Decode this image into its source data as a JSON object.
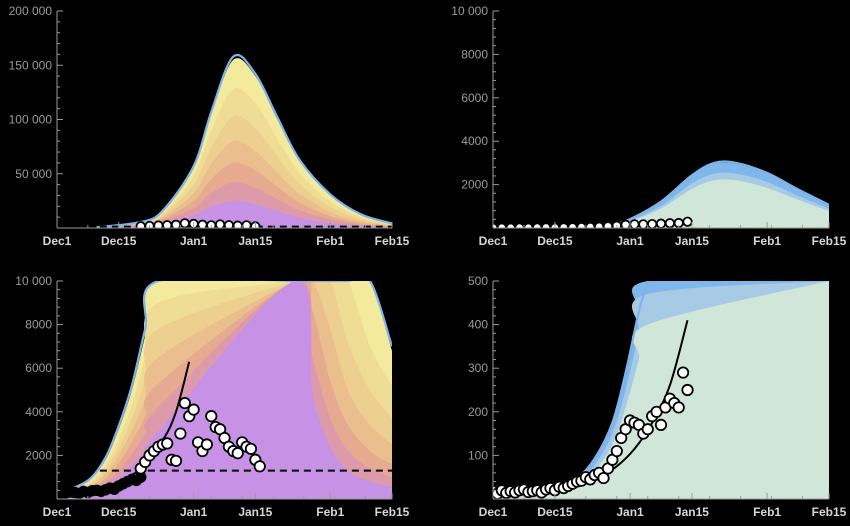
{
  "chart_data": [
    {
      "type": "area",
      "panel": "top-left",
      "palette": "warm",
      "x_dates": [
        "2020-12-01",
        "2020-12-15",
        "2021-01-01",
        "2021-01-15",
        "2021-02-01",
        "2021-02-15"
      ],
      "x_labels": [
        "Dec1",
        "Dec15",
        "Jan1",
        "Jan15",
        "Feb1",
        "Feb15"
      ],
      "y_ticks": [
        50000,
        100000,
        150000,
        200000
      ],
      "y_tick_labels": [
        "50 000",
        "100 000",
        "150 000",
        "200 000"
      ],
      "ylim": [
        0,
        200000
      ],
      "band_curves": {
        "date": [
          "2020-12-10",
          "2020-12-20",
          "2020-12-25",
          "2021-01-01",
          "2021-01-05",
          "2021-01-10",
          "2021-01-15",
          "2021-01-20",
          "2021-01-25",
          "2021-02-01",
          "2021-02-08",
          "2021-02-15"
        ],
        "band_1": [
          600,
          5000,
          15000,
          55000,
          105000,
          155000,
          140000,
          100000,
          62000,
          30000,
          12000,
          4000
        ],
        "band_2": [
          550,
          4600,
          13500,
          48000,
          90000,
          128000,
          115000,
          82000,
          51000,
          24500,
          10000,
          3200
        ],
        "band_3": [
          500,
          4200,
          12000,
          40000,
          74000,
          103000,
          92000,
          66000,
          41000,
          19500,
          8000,
          2600
        ],
        "band_4": [
          450,
          3700,
          10000,
          32000,
          59000,
          80000,
          71000,
          51000,
          31500,
          15000,
          6200,
          2000
        ],
        "band_5": [
          400,
          3200,
          8500,
          25000,
          45000,
          60000,
          53000,
          38000,
          23500,
          11000,
          4500,
          1500
        ],
        "band_6": [
          350,
          2600,
          6800,
          18000,
          32000,
          42000,
          37000,
          26500,
          16500,
          7800,
          3200,
          1100
        ],
        "band_7": [
          300,
          2000,
          5000,
          11500,
          19500,
          25000,
          22000,
          15500,
          9500,
          4500,
          1900,
          700
        ]
      },
      "outline_curve": {
        "date": [
          "2020-12-10",
          "2020-12-20",
          "2020-12-25",
          "2021-01-01",
          "2021-01-05",
          "2021-01-10",
          "2021-01-15",
          "2021-01-20",
          "2021-01-25",
          "2021-02-01",
          "2021-02-08",
          "2021-02-15"
        ],
        "value": [
          700,
          5500,
          16000,
          57000,
          107000,
          158000,
          142000,
          102000,
          63000,
          31000,
          12500,
          4200
        ]
      },
      "threshold": 1300,
      "points": {
        "date": [
          "2020-12-20",
          "2020-12-22",
          "2020-12-24",
          "2020-12-26",
          "2020-12-28",
          "2020-12-30",
          "2021-01-01",
          "2021-01-03",
          "2021-01-05",
          "2021-01-07",
          "2021-01-09",
          "2021-01-11",
          "2021-01-13",
          "2021-01-15"
        ],
        "value": [
          1600,
          1900,
          2300,
          2600,
          3000,
          4300,
          3800,
          3000,
          2500,
          3300,
          2600,
          2200,
          2500,
          1500
        ]
      }
    },
    {
      "type": "area",
      "panel": "top-right",
      "palette": "cool",
      "x_dates": [
        "2020-12-01",
        "2020-12-15",
        "2021-01-01",
        "2021-01-15",
        "2021-02-01",
        "2021-02-15"
      ],
      "x_labels": [
        "Dec1",
        "Dec15",
        "Jan1",
        "Jan15",
        "Feb1",
        "Feb15"
      ],
      "y_ticks": [
        2000,
        4000,
        6000,
        8000,
        10000
      ],
      "y_tick_labels": [
        "2000",
        "4000",
        "6000",
        "8000",
        "10 000"
      ],
      "ylim": [
        0,
        10000
      ],
      "band_curves": {
        "date": [
          "2020-12-22",
          "2020-12-28",
          "2021-01-01",
          "2021-01-08",
          "2021-01-15",
          "2021-01-20",
          "2021-01-25",
          "2021-02-01",
          "2021-02-08",
          "2021-02-15"
        ],
        "band_1": [
          20,
          150,
          400,
          1200,
          2400,
          2950,
          2950,
          2500,
          1750,
          1050
        ],
        "band_2": [
          18,
          130,
          340,
          1020,
          2050,
          2500,
          2500,
          2120,
          1480,
          900
        ],
        "band_3": [
          15,
          110,
          300,
          900,
          1800,
          2200,
          2200,
          1850,
          1300,
          780
        ]
      },
      "outline_curve": {
        "date": [
          "2020-12-22",
          "2020-12-28",
          "2021-01-01",
          "2021-01-08",
          "2021-01-15",
          "2021-01-20",
          "2021-01-25",
          "2021-02-01",
          "2021-02-08",
          "2021-02-15"
        ],
        "value": [
          20,
          160,
          410,
          1220,
          2430,
          3000,
          3000,
          2540,
          1780,
          1070
        ]
      },
      "points": {
        "date": [
          "2020-12-01",
          "2020-12-03",
          "2020-12-05",
          "2020-12-07",
          "2020-12-09",
          "2020-12-11",
          "2020-12-13",
          "2020-12-15",
          "2020-12-17",
          "2020-12-19",
          "2020-12-21",
          "2020-12-23",
          "2020-12-25",
          "2020-12-27",
          "2020-12-29",
          "2020-12-31",
          "2021-01-02",
          "2021-01-04",
          "2021-01-06",
          "2021-01-08",
          "2021-01-10",
          "2021-01-12",
          "2021-01-14"
        ],
        "value": [
          15,
          14,
          15,
          18,
          15,
          20,
          25,
          20,
          28,
          35,
          45,
          50,
          60,
          80,
          110,
          150,
          170,
          170,
          180,
          200,
          220,
          230,
          290
        ]
      }
    },
    {
      "type": "area",
      "panel": "bottom-left",
      "palette": "warm",
      "x_dates": [
        "2020-12-01",
        "2020-12-15",
        "2021-01-01",
        "2021-01-15",
        "2021-02-01",
        "2021-02-15"
      ],
      "x_labels": [
        "Dec1",
        "Dec15",
        "Jan1",
        "Jan15",
        "Feb1",
        "Feb15"
      ],
      "y_ticks": [
        2000,
        4000,
        6000,
        8000,
        10000
      ],
      "y_tick_labels": [
        "2000",
        "4000",
        "6000",
        "8000",
        "10 000"
      ],
      "ylim": [
        0,
        10000
      ],
      "band_curves": {
        "date": [
          "2020-12-01",
          "2020-12-08",
          "2020-12-12",
          "2020-12-15",
          "2020-12-18",
          "2020-12-21",
          "2020-12-24",
          "2021-01-24",
          "2021-01-28",
          "2021-02-01",
          "2021-02-05",
          "2021-02-10",
          "2021-02-15"
        ],
        "band_1": [
          200,
          800,
          1800,
          3200,
          5000,
          7500,
          10000,
          10000,
          10000,
          10000,
          10000,
          10000,
          6800
        ],
        "band_2": [
          180,
          700,
          1550,
          2750,
          4300,
          6500,
          9000,
          10000,
          10000,
          10000,
          10000,
          7000,
          5200
        ],
        "band_3": [
          160,
          600,
          1350,
          2350,
          3700,
          5500,
          7800,
          10000,
          10000,
          10000,
          7200,
          5000,
          3700
        ],
        "band_4": [
          140,
          500,
          1150,
          2000,
          3150,
          4600,
          6500,
          10000,
          10000,
          7800,
          5000,
          3400,
          2500
        ],
        "band_5": [
          120,
          420,
          950,
          1650,
          2600,
          3800,
          5300,
          10000,
          8600,
          5400,
          3400,
          2200,
          1600
        ],
        "band_6": [
          100,
          340,
          750,
          1300,
          2050,
          3000,
          4200,
          10000,
          6500,
          3700,
          2200,
          1400,
          1000
        ],
        "band_7": [
          80,
          260,
          550,
          950,
          1500,
          2200,
          3100,
          10000,
          4800,
          2400,
          1300,
          800,
          550
        ]
      },
      "outline_curve": {
        "date": [
          "2020-12-01",
          "2020-12-08",
          "2020-12-12",
          "2020-12-15",
          "2020-12-18",
          "2020-12-21",
          "2020-12-24",
          "2021-01-24",
          "2021-01-28",
          "2021-02-01",
          "2021-02-05",
          "2021-02-10",
          "2021-02-15"
        ],
        "value": [
          220,
          850,
          1900,
          3350,
          5200,
          7800,
          10000,
          10000,
          10000,
          10000,
          10000,
          10000,
          7000
        ]
      },
      "threshold": 1300,
      "fit_curve": {
        "date": [
          "2020-12-01",
          "2020-12-05",
          "2020-12-10",
          "2020-12-15",
          "2020-12-20",
          "2020-12-25",
          "2020-12-28",
          "2020-12-31"
        ],
        "value": [
          250,
          320,
          480,
          800,
          1400,
          2700,
          4000,
          6300
        ]
      },
      "points_black": {
        "date": [
          "2020-12-01",
          "2020-12-02",
          "2020-12-03",
          "2020-12-04",
          "2020-12-05",
          "2020-12-06",
          "2020-12-07",
          "2020-12-08",
          "2020-12-09",
          "2020-12-10",
          "2020-12-11",
          "2020-12-12",
          "2020-12-13",
          "2020-12-14",
          "2020-12-15",
          "2020-12-16",
          "2020-12-17",
          "2020-12-18",
          "2020-12-19",
          "2020-12-20"
        ],
        "value": [
          300,
          250,
          280,
          320,
          300,
          260,
          350,
          300,
          380,
          400,
          350,
          420,
          500,
          450,
          600,
          700,
          800,
          900,
          850,
          1000
        ]
      },
      "points": {
        "date": [
          "2020-12-20",
          "2020-12-21",
          "2020-12-22",
          "2020-12-23",
          "2020-12-24",
          "2020-12-25",
          "2020-12-26",
          "2020-12-27",
          "2020-12-28",
          "2020-12-29",
          "2020-12-30",
          "2020-12-31",
          "2021-01-01",
          "2021-01-02",
          "2021-01-03",
          "2021-01-04",
          "2021-01-05",
          "2021-01-06",
          "2021-01-07",
          "2021-01-08",
          "2021-01-09",
          "2021-01-10",
          "2021-01-11",
          "2021-01-12",
          "2021-01-13",
          "2021-01-14",
          "2021-01-15",
          "2021-01-16"
        ],
        "value": [
          1400,
          1700,
          2000,
          2200,
          2400,
          2500,
          2550,
          1800,
          1750,
          3000,
          4400,
          3800,
          4100,
          2600,
          2200,
          2500,
          3800,
          3300,
          3200,
          2800,
          2400,
          2200,
          2100,
          2600,
          2400,
          2300,
          1800,
          1500
        ]
      }
    },
    {
      "type": "area",
      "panel": "bottom-right",
      "palette": "cool",
      "x_dates": [
        "2020-12-01",
        "2020-12-15",
        "2021-01-01",
        "2021-01-15",
        "2021-02-01",
        "2021-02-15"
      ],
      "x_labels": [
        "Dec1",
        "Dec15",
        "Jan1",
        "Jan15",
        "Feb1",
        "Feb15"
      ],
      "y_ticks": [
        100,
        200,
        300,
        400,
        500
      ],
      "y_tick_labels": [
        "100",
        "200",
        "300",
        "400",
        "500"
      ],
      "ylim": [
        0,
        500
      ],
      "band_curves": {
        "date": [
          "2020-12-01",
          "2020-12-10",
          "2020-12-15",
          "2020-12-20",
          "2020-12-24",
          "2020-12-28",
          "2020-12-31",
          "2021-01-03",
          "2021-01-05",
          "2021-02-15"
        ],
        "band_1": [
          10,
          12,
          20,
          45,
          90,
          170,
          280,
          420,
          500,
          500
        ],
        "band_2": [
          9,
          11,
          18,
          38,
          78,
          150,
          250,
          380,
          470,
          500
        ],
        "band_3": [
          8,
          10,
          15,
          32,
          65,
          125,
          210,
          320,
          400,
          500
        ]
      },
      "outline_curve": {
        "date": [
          "2020-12-01",
          "2020-12-10",
          "2020-12-15",
          "2020-12-20",
          "2020-12-24",
          "2020-12-28",
          "2020-12-31",
          "2021-01-03",
          "2021-01-05"
        ],
        "value": [
          10,
          12,
          21,
          47,
          93,
          175,
          290,
          430,
          500
        ]
      },
      "fit_curve": {
        "date": [
          "2020-12-01",
          "2020-12-10",
          "2020-12-15",
          "2020-12-20",
          "2020-12-25",
          "2020-12-29",
          "2021-01-02",
          "2021-01-06",
          "2021-01-10",
          "2021-01-14"
        ],
        "value": [
          15,
          16,
          20,
          30,
          50,
          75,
          115,
          175,
          260,
          410
        ]
      },
      "points": {
        "date": [
          "2020-12-01",
          "2020-12-02",
          "2020-12-03",
          "2020-12-04",
          "2020-12-05",
          "2020-12-06",
          "2020-12-07",
          "2020-12-08",
          "2020-12-09",
          "2020-12-10",
          "2020-12-11",
          "2020-12-12",
          "2020-12-13",
          "2020-12-14",
          "2020-12-15",
          "2020-12-16",
          "2020-12-17",
          "2020-12-18",
          "2020-12-19",
          "2020-12-20",
          "2020-12-21",
          "2020-12-22",
          "2020-12-23",
          "2020-12-24",
          "2020-12-25",
          "2020-12-26",
          "2020-12-27",
          "2020-12-28",
          "2020-12-29",
          "2020-12-30",
          "2020-12-31",
          "2021-01-01",
          "2021-01-02",
          "2021-01-03",
          "2021-01-04",
          "2021-01-05",
          "2021-01-06",
          "2021-01-07",
          "2021-01-08",
          "2021-01-09",
          "2021-01-10",
          "2021-01-11",
          "2021-01-12",
          "2021-01-13",
          "2021-01-14"
        ],
        "value": [
          18,
          12,
          20,
          14,
          18,
          15,
          20,
          22,
          16,
          18,
          20,
          15,
          22,
          25,
          20,
          28,
          25,
          30,
          35,
          40,
          42,
          50,
          45,
          55,
          60,
          48,
          70,
          90,
          110,
          140,
          160,
          180,
          175,
          170,
          150,
          160,
          190,
          200,
          170,
          210,
          230,
          220,
          210,
          290,
          250
        ]
      }
    }
  ],
  "colors": {
    "background": "#000000",
    "axis": "#9a9a9a",
    "warm_bands": [
      "#f3ea9e",
      "#f0dd95",
      "#edcf90",
      "#ebbe8d",
      "#e6aa91",
      "#dc9aab",
      "#c792e6"
    ],
    "cool_bands": [
      "#7fb7ec",
      "#a7cbe5",
      "#cfe6d8"
    ],
    "outline": "#7fb4e8",
    "points_fill": "#ffffff",
    "points_edge": "#000000"
  }
}
